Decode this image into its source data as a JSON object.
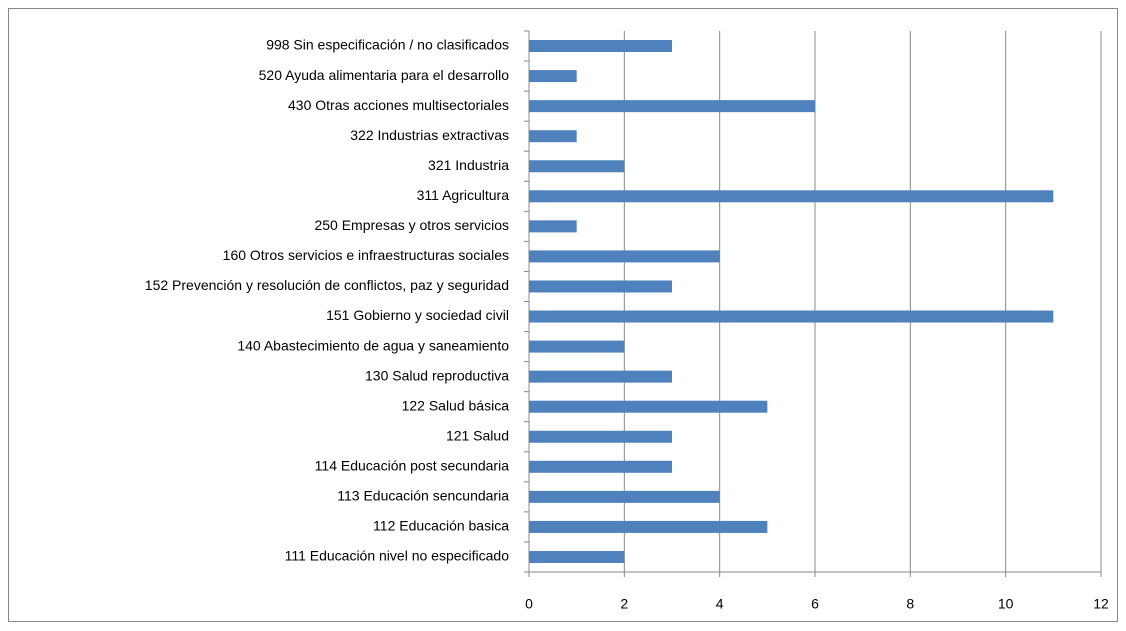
{
  "chart_data": {
    "type": "bar",
    "orientation": "horizontal",
    "categories": [
      "998 Sin especificación / no clasificados",
      "520 Ayuda alimentaria para el desarrollo",
      "430 Otras acciones multisectoriales",
      "322 Industrias extractivas",
      "321 Industria",
      "311 Agricultura",
      "250 Empresas y otros servicios",
      "160 Otros servicios e infraestructuras sociales",
      "152 Prevención y resolución de conflictos, paz y seguridad",
      "151 Gobierno y sociedad civil",
      "140 Abastecimiento de agua y saneamiento",
      "130 Salud reproductiva",
      "122 Salud básica",
      "121 Salud",
      "114 Educación post secundaria",
      "113 Educación sencundaria",
      "112 Educación basica",
      "111 Educación nivel no especificado"
    ],
    "values": [
      3,
      1,
      6,
      1,
      2,
      11,
      1,
      4,
      3,
      11,
      2,
      3,
      5,
      3,
      3,
      4,
      5,
      2
    ],
    "color": "#4f81bd",
    "xlim": [
      0,
      12
    ],
    "xticks": [
      0,
      2,
      4,
      6,
      8,
      10,
      12
    ],
    "grid": true
  }
}
